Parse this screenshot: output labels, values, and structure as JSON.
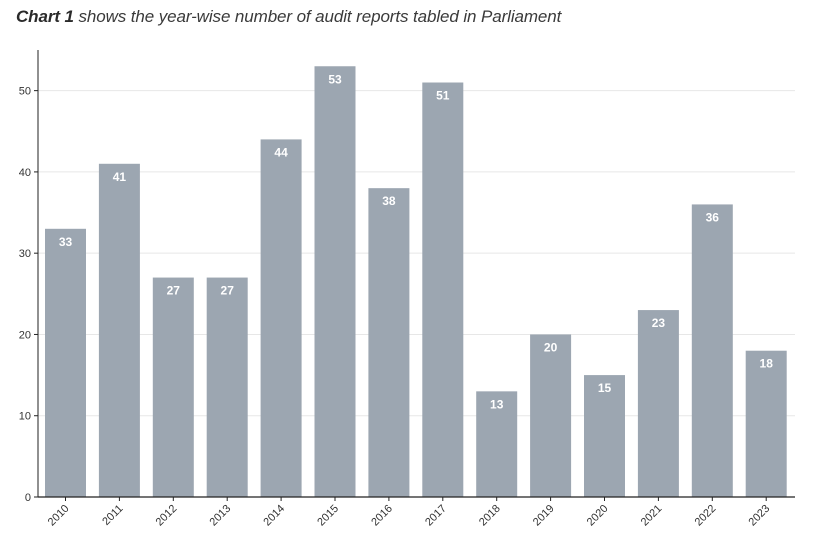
{
  "title": {
    "bold": "Chart 1",
    "rest": " shows the year-wise number of audit reports tabled in Parliament"
  },
  "colors": {
    "bar": "#9ca6b1",
    "grid": "#e7e7e7",
    "axis": "#222222"
  },
  "chart_data": {
    "type": "bar",
    "title": "Chart 1 shows the year-wise number of audit reports tabled in Parliament",
    "xlabel": "",
    "ylabel": "",
    "categories": [
      "2010",
      "2011",
      "2012",
      "2013",
      "2014",
      "2015",
      "2016",
      "2017",
      "2018",
      "2019",
      "2020",
      "2021",
      "2022",
      "2023"
    ],
    "values": [
      33,
      41,
      27,
      27,
      44,
      53,
      38,
      51,
      13,
      20,
      15,
      23,
      36,
      18
    ],
    "yticks": [
      0,
      10,
      20,
      30,
      40,
      50
    ],
    "ylim": [
      0,
      55
    ],
    "grid": true,
    "data_labels": true
  }
}
